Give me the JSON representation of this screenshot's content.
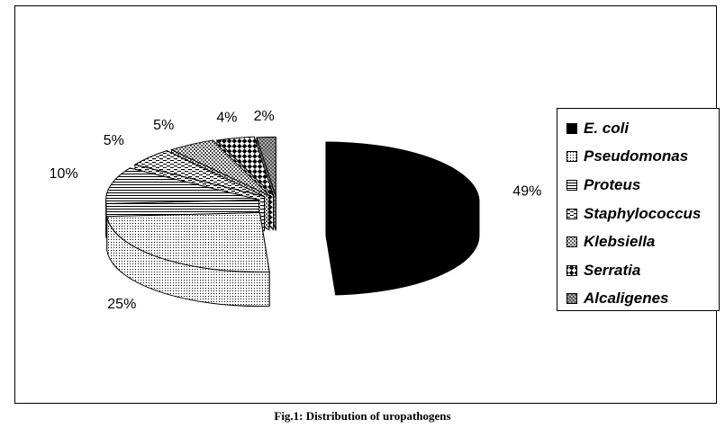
{
  "caption": "Fig.1: Distribution of uropathogens",
  "chart_data": {
    "type": "pie",
    "title": "",
    "slices": [
      {
        "name": "E. coli",
        "value": 49,
        "label": "49%",
        "fill": "pat-black"
      },
      {
        "name": "Pseudomonas",
        "value": 25,
        "label": "25%",
        "fill": "pat-dots"
      },
      {
        "name": "Proteus",
        "value": 10,
        "label": "10%",
        "fill": "pat-hlines"
      },
      {
        "name": "Staphylococcus",
        "value": 5,
        "label": "5%",
        "fill": "pat-dashes"
      },
      {
        "name": "Klebsiella",
        "value": 5,
        "label": "5%",
        "fill": "pat-cross"
      },
      {
        "name": "Serratia",
        "value": 4,
        "label": "4%",
        "fill": "pat-checker"
      },
      {
        "name": "Alcaligenes",
        "value": 2,
        "label": "2%",
        "fill": "pat-crosshatch"
      }
    ],
    "legend_position": "right",
    "style": "3d-exploded"
  }
}
